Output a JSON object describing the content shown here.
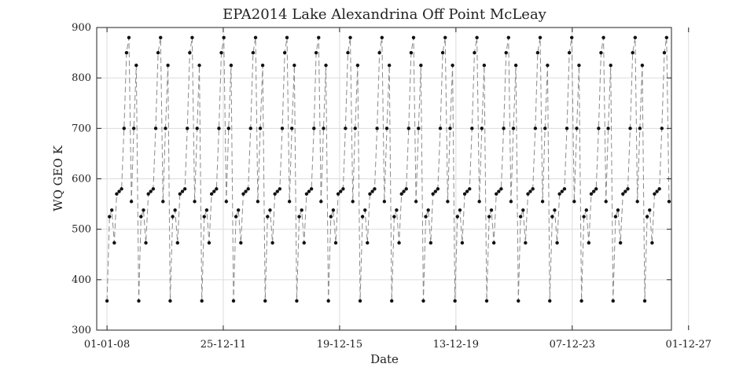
{
  "chart_data": {
    "type": "line",
    "title": "EPA2014 Lake Alexandrina Off Point McLeay",
    "xlabel": "Date",
    "ylabel": "WQ GEO K",
    "ylim": [
      300,
      900
    ],
    "xlim": [
      "2007-08-25",
      "2027-05-01"
    ],
    "x_tick_labels": [
      "01-01-08",
      "25-12-11",
      "19-12-15",
      "13-12-19",
      "07-12-23",
      "01-12-27"
    ],
    "y_tick_labels": [
      "300",
      "400",
      "500",
      "600",
      "700",
      "800",
      "900"
    ],
    "grid": true,
    "colors": {
      "line": "#8a8a8a",
      "marker": "#111111",
      "axes": "#222222",
      "grid": "#dcdcdc"
    },
    "series": [
      {
        "x": [
          "2008-01-01",
          "2008-02-01",
          "2008-03-01",
          "2008-04-01",
          "2008-05-01",
          "2008-06-01",
          "2008-07-01",
          "2008-08-01",
          "2008-09-01",
          "2008-10-01",
          "2008-11-01",
          "2008-12-01",
          "2009-01-01",
          "2009-02-01",
          "2009-03-01",
          "2009-04-01",
          "2009-05-01",
          "2009-06-01",
          "2009-07-01",
          "2009-08-01",
          "2009-09-01",
          "2009-10-01",
          "2009-11-01",
          "2009-12-01",
          "2010-01-01",
          "2010-02-01",
          "2010-03-01",
          "2010-04-01",
          "2010-05-01",
          "2010-06-01",
          "2010-07-01",
          "2010-08-01",
          "2010-09-01",
          "2010-10-01",
          "2010-11-01",
          "2010-12-01",
          "2011-01-01",
          "2011-02-01",
          "2011-03-01",
          "2011-04-01",
          "2011-05-01",
          "2011-06-01",
          "2011-07-01",
          "2011-08-01",
          "2011-09-01",
          "2011-10-01",
          "2011-11-01",
          "2011-12-01",
          "2012-01-01",
          "2012-02-01",
          "2012-03-01",
          "2012-04-01",
          "2012-05-01",
          "2012-06-01",
          "2012-07-01",
          "2012-08-01",
          "2012-09-01",
          "2012-10-01",
          "2012-11-01",
          "2012-12-01",
          "2013-01-01",
          "2013-02-01",
          "2013-03-01",
          "2013-04-01",
          "2013-05-01",
          "2013-06-01",
          "2013-07-01",
          "2013-08-01",
          "2013-09-01",
          "2013-10-01",
          "2013-11-01",
          "2013-12-01",
          "2014-01-01",
          "2014-02-01",
          "2014-03-01",
          "2014-04-01",
          "2014-05-01",
          "2014-06-01",
          "2014-07-01",
          "2014-08-01",
          "2014-09-01",
          "2014-10-01",
          "2014-11-01",
          "2014-12-01",
          "2015-01-01",
          "2015-02-01",
          "2015-03-01",
          "2015-04-01",
          "2015-05-01",
          "2015-06-01",
          "2015-07-01",
          "2015-08-01",
          "2015-09-01",
          "2015-10-01",
          "2015-11-01",
          "2015-12-01",
          "2016-01-01",
          "2016-02-01",
          "2016-03-01",
          "2016-04-01",
          "2016-05-01",
          "2016-06-01",
          "2016-07-01",
          "2016-08-01",
          "2016-09-01",
          "2016-10-01",
          "2016-11-01",
          "2016-12-01",
          "2017-01-01",
          "2017-02-01",
          "2017-03-01",
          "2017-04-01",
          "2017-05-01",
          "2017-06-01",
          "2017-07-01",
          "2017-08-01",
          "2017-09-01",
          "2017-10-01",
          "2017-11-01",
          "2017-12-01",
          "2018-01-01",
          "2018-02-01",
          "2018-03-01",
          "2018-04-01",
          "2018-05-01",
          "2018-06-01",
          "2018-07-01",
          "2018-08-01",
          "2018-09-01",
          "2018-10-01",
          "2018-11-01",
          "2018-12-01",
          "2019-01-01",
          "2019-02-01",
          "2019-03-01",
          "2019-04-01",
          "2019-05-01",
          "2019-06-01",
          "2019-07-01",
          "2019-08-01",
          "2019-09-01",
          "2019-10-01",
          "2019-11-01",
          "2019-12-01",
          "2020-01-01",
          "2020-02-01",
          "2020-03-01",
          "2020-04-01",
          "2020-05-01",
          "2020-06-01",
          "2020-07-01",
          "2020-08-01",
          "2020-09-01",
          "2020-10-01",
          "2020-11-01",
          "2020-12-01",
          "2021-01-01",
          "2021-02-01",
          "2021-03-01",
          "2021-04-01",
          "2021-05-01",
          "2021-06-01",
          "2021-07-01",
          "2021-08-01",
          "2021-09-01",
          "2021-10-01",
          "2021-11-01",
          "2021-12-01",
          "2022-01-01",
          "2022-02-01",
          "2022-03-01",
          "2022-04-01",
          "2022-05-01",
          "2022-06-01",
          "2022-07-01",
          "2022-08-01",
          "2022-09-01",
          "2022-10-01",
          "2022-11-01",
          "2022-12-01",
          "2023-01-01",
          "2023-02-01",
          "2023-03-01",
          "2023-04-01",
          "2023-05-01",
          "2023-06-01",
          "2023-07-01",
          "2023-08-01",
          "2023-09-01",
          "2023-10-01",
          "2023-11-01",
          "2023-12-01",
          "2024-01-01",
          "2024-02-01",
          "2024-03-01",
          "2024-04-01",
          "2024-05-01",
          "2024-06-01",
          "2024-07-01",
          "2024-08-01",
          "2024-09-01",
          "2024-10-01",
          "2024-11-01",
          "2024-12-01",
          "2025-01-01",
          "2025-02-01",
          "2025-03-01",
          "2025-04-01",
          "2025-05-01",
          "2025-06-01",
          "2025-07-01",
          "2025-08-01",
          "2025-09-01",
          "2025-10-01",
          "2025-11-01",
          "2025-12-01",
          "2026-01-01",
          "2026-02-01",
          "2026-03-01",
          "2026-04-01",
          "2026-05-01",
          "2026-06-01",
          "2026-07-01",
          "2026-08-01",
          "2026-09-01",
          "2026-10-01",
          "2026-11-01",
          "2026-12-01",
          "2027-01-01",
          "2027-02-01",
          "2027-03-01",
          "2027-04-01"
        ],
        "y": [
          358,
          525,
          538,
          473,
          570,
          575,
          580,
          700,
          850,
          880,
          555,
          700,
          825,
          358,
          525,
          538,
          473,
          570,
          575,
          580,
          700,
          850,
          880,
          555,
          700,
          825,
          358,
          525,
          538,
          473,
          570,
          575,
          580,
          700,
          850,
          880,
          555,
          700,
          825,
          358,
          525,
          538,
          473,
          570,
          575,
          580,
          700,
          850,
          880,
          555,
          700,
          825,
          358,
          525,
          538,
          473,
          570,
          575,
          580,
          700,
          850,
          880,
          555,
          700,
          825,
          358,
          525,
          538,
          473,
          570,
          575,
          580,
          700,
          850,
          880,
          555,
          700,
          825,
          358,
          525,
          538,
          473,
          570,
          575,
          580,
          700,
          850,
          880,
          555,
          700,
          825,
          358,
          525,
          538,
          473,
          570,
          575,
          580,
          700,
          850,
          880,
          555,
          700,
          825,
          358,
          525,
          538,
          473,
          570,
          575,
          580,
          700,
          850,
          880,
          555,
          700,
          825,
          358,
          525,
          538,
          473,
          570,
          575,
          580,
          700,
          850,
          880,
          555,
          700,
          825,
          358,
          525,
          538,
          473,
          570,
          575,
          580,
          700,
          850,
          880,
          555,
          700,
          825,
          358,
          525,
          538,
          473,
          570,
          575,
          580,
          700,
          850,
          880,
          555,
          700,
          825,
          358,
          525,
          538,
          473,
          570,
          575,
          580,
          700,
          850,
          880,
          555,
          700,
          825,
          358,
          525,
          538,
          473,
          570,
          575,
          580,
          700,
          850,
          880,
          555,
          700,
          825,
          358,
          525,
          538,
          473,
          570,
          575,
          580,
          700,
          850,
          880,
          555,
          700,
          825,
          358,
          525,
          538,
          473,
          570,
          575,
          580,
          700,
          850,
          880,
          555,
          700,
          825,
          358,
          525,
          538,
          473,
          570,
          575,
          580,
          700,
          850,
          880,
          555,
          700,
          825,
          358,
          525,
          538,
          473,
          570,
          575,
          580,
          700,
          850,
          880,
          555
        ]
      }
    ]
  }
}
